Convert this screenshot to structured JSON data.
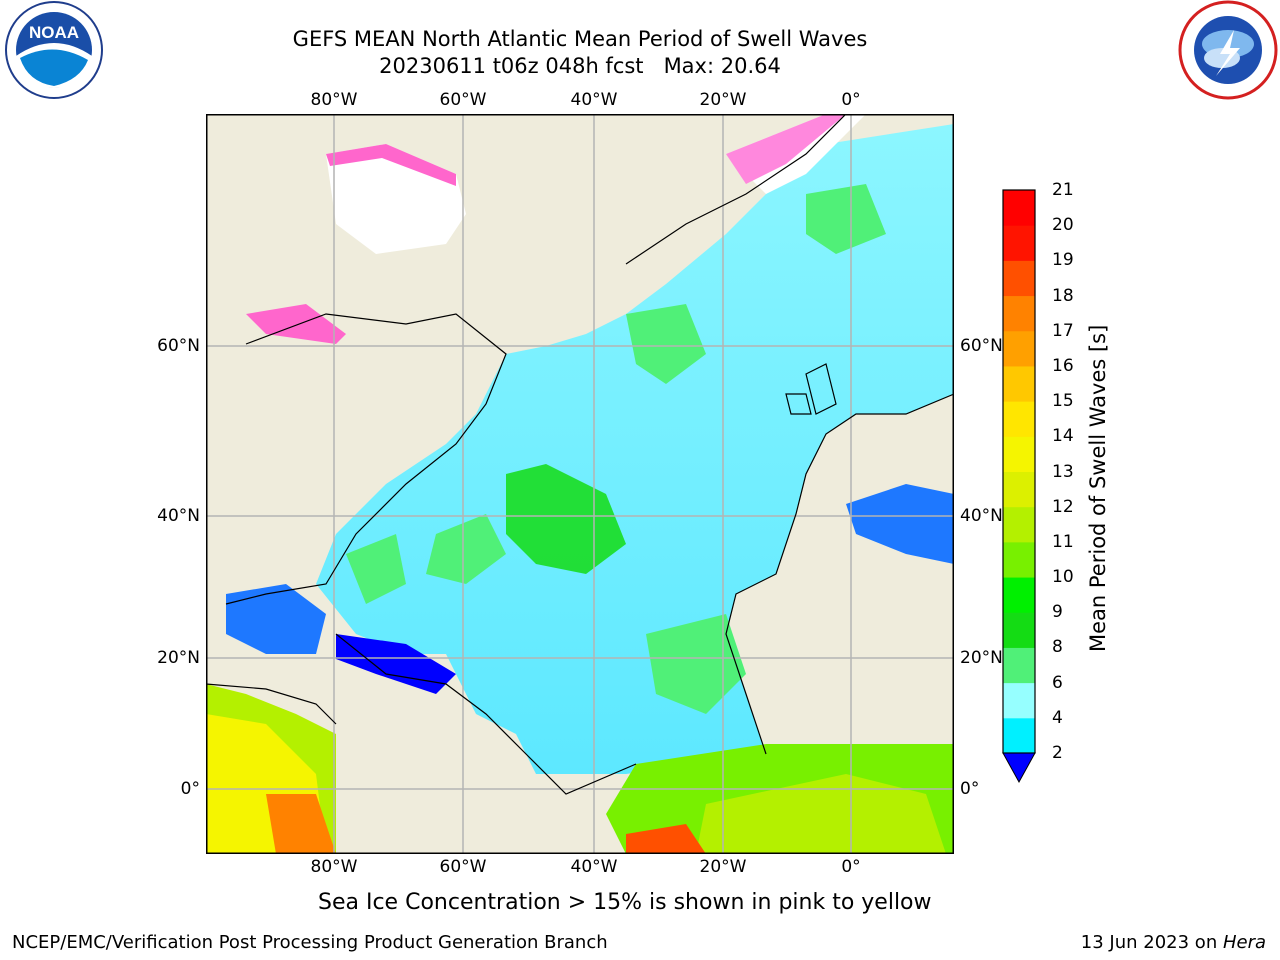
{
  "title_line1": "GEFS MEAN North Atlantic Mean Period of Swell Waves",
  "title_line2": "20230611 t06z 048h fcst   Max: 20.64",
  "logos": {
    "left": {
      "icon": "noaa-logo",
      "text": "NOAA",
      "ring_text": "NATIONAL OCEANIC AND ATMOSPHERIC ADMINISTRATION · U.S. DEPARTMENT OF COMMERCE"
    },
    "right": {
      "icon": "national-weather-service-logo",
      "ring_text": "NATIONAL WEATHER SERVICE"
    }
  },
  "map": {
    "lon_labels": [
      "80°W",
      "60°W",
      "40°W",
      "20°W",
      "0°"
    ],
    "lat_labels": [
      "60°N",
      "40°N",
      "20°N",
      "0°"
    ],
    "lat_labels_right": [
      "60°N",
      "40°N",
      "20°N",
      "0°"
    ],
    "colors": {
      "land": "#efecdc",
      "ice": "#ffffff",
      "grid": "#b4b4b4",
      "coast": "#000000"
    }
  },
  "colorbar": {
    "label": "Mean Period of Swell Waves [s]",
    "ticks": [
      "2",
      "4",
      "6",
      "8",
      "9",
      "10",
      "11",
      "12",
      "13",
      "14",
      "15",
      "16",
      "17",
      "18",
      "19",
      "20",
      "21"
    ],
    "colors": [
      "#1e78ff",
      "#00c8ff",
      "#00f0ff",
      "#96ffff",
      "#50f078",
      "#14dc14",
      "#00f000",
      "#78f000",
      "#b4f000",
      "#dcf000",
      "#f5f500",
      "#ffe600",
      "#ffc800",
      "#ffa000",
      "#ff8200",
      "#ff5000",
      "#ff1400",
      "#ff0000"
    ],
    "extend_color": "#0000ff"
  },
  "caption": "Sea Ice Concentration > 15% is shown in pink to yellow",
  "footer_left": "NCEP/EMC/Verification Post Processing Product Generation Branch",
  "footer_right_date": "13 Jun 2023 on ",
  "footer_right_host": "Hera"
}
